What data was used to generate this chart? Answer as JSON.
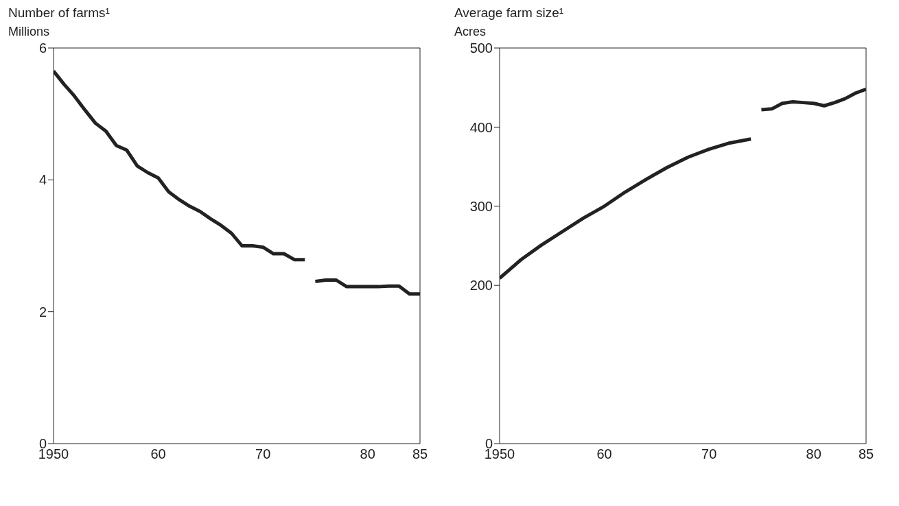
{
  "chart_data": [
    {
      "type": "line",
      "title": "Number of farms¹",
      "ylabel": "Millions",
      "xlim": [
        1950,
        1985
      ],
      "xticks": [
        1950,
        {
          "value": 1960,
          "label": "60"
        },
        {
          "value": 1970,
          "label": "70"
        },
        {
          "value": 1980,
          "label": "80"
        },
        {
          "value": 1985,
          "label": "85"
        }
      ],
      "ylim": [
        0,
        6
      ],
      "yticks": [
        0,
        2,
        4,
        6
      ],
      "series": [
        {
          "color": "#222222",
          "x": [
            1950,
            1951,
            1952,
            1953,
            1954,
            1955,
            1956,
            1957,
            1958,
            1959,
            1960,
            1961,
            1962,
            1963,
            1964,
            1965,
            1966,
            1967,
            1968,
            1969,
            1970,
            1971,
            1972,
            1973,
            1974
          ],
          "values": [
            5.65,
            5.45,
            5.27,
            5.06,
            4.86,
            4.74,
            4.52,
            4.45,
            4.21,
            4.11,
            4.03,
            3.82,
            3.7,
            3.6,
            3.52,
            3.41,
            3.31,
            3.19,
            3.0,
            3.0,
            2.98,
            2.88,
            2.88,
            2.79,
            2.79
          ]
        },
        {
          "color": "#222222",
          "x": [
            1975,
            1976,
            1977,
            1978,
            1979,
            1980,
            1981,
            1982,
            1983,
            1984,
            1985
          ],
          "values": [
            2.46,
            2.48,
            2.48,
            2.38,
            2.38,
            2.38,
            2.38,
            2.39,
            2.39,
            2.27,
            2.27
          ]
        }
      ]
    },
    {
      "type": "line",
      "title": "Average farm size¹",
      "ylabel": "Acres",
      "xlim": [
        1950,
        1985
      ],
      "xticks": [
        1950,
        {
          "value": 1960,
          "label": "60"
        },
        {
          "value": 1970,
          "label": "70"
        },
        {
          "value": 1980,
          "label": "80"
        },
        {
          "value": 1985,
          "label": "85"
        }
      ],
      "ylim": [
        0,
        500
      ],
      "yticks": [
        0,
        200,
        300,
        400,
        500
      ],
      "series": [
        {
          "color": "#222222",
          "x": [
            1950,
            1952,
            1954,
            1956,
            1958,
            1960,
            1962,
            1964,
            1966,
            1968,
            1970,
            1972,
            1974
          ],
          "values": [
            209,
            232,
            251,
            268,
            285,
            300,
            318,
            334,
            349,
            362,
            372,
            380,
            385
          ]
        },
        {
          "color": "#222222",
          "x": [
            1975,
            1976,
            1977,
            1978,
            1979,
            1980,
            1981,
            1982,
            1983,
            1984,
            1985
          ],
          "values": [
            422,
            423,
            430,
            432,
            431,
            430,
            427,
            431,
            436,
            443,
            448
          ]
        }
      ]
    }
  ]
}
